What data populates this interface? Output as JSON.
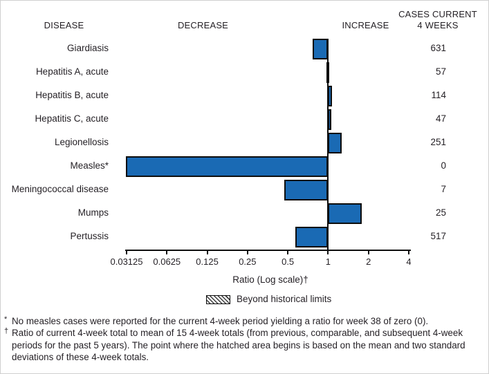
{
  "header": {
    "disease": "DISEASE",
    "decrease": "DECREASE",
    "increase": "INCREASE",
    "cases_line1": "CASES CURRENT",
    "cases_line2": "4 WEEKS"
  },
  "chart_data": {
    "type": "bar",
    "orientation": "horizontal",
    "scale": "log2",
    "title": "",
    "xlabel": "Ratio (Log scale)†",
    "axis_range": [
      0.03125,
      4
    ],
    "axis_ticks": [
      0.03125,
      0.0625,
      0.125,
      0.25,
      0.5,
      1,
      2,
      4
    ],
    "baseline": 1,
    "grid": false,
    "rows": [
      {
        "disease": "Giardiasis",
        "ratio": 0.77,
        "cases": 631
      },
      {
        "disease": "Hepatitis A, acute",
        "ratio": 0.97,
        "cases": 57
      },
      {
        "disease": "Hepatitis B, acute",
        "ratio": 1.07,
        "cases": 114
      },
      {
        "disease": "Hepatitis C, acute",
        "ratio": 1.03,
        "cases": 47
      },
      {
        "disease": "Legionellosis",
        "ratio": 1.26,
        "cases": 251
      },
      {
        "disease": "Measles*",
        "ratio": 0,
        "cases": 0
      },
      {
        "disease": "Meningococcal disease",
        "ratio": 0.47,
        "cases": 7
      },
      {
        "disease": "Mumps",
        "ratio": 1.78,
        "cases": 25
      },
      {
        "disease": "Pertussis",
        "ratio": 0.57,
        "cases": 517
      }
    ],
    "legend": {
      "label": "Beyond historical limits",
      "swatch": "diagonal-hatch"
    },
    "colors": {
      "bar_fill": "#1a6ab4",
      "bar_border": "#0d0d0d",
      "axis": "#0d0d0d",
      "text": "#231f24"
    }
  },
  "footnotes": [
    {
      "marker": "*",
      "text": "No measles cases were reported for the current 4-week period yielding a ratio for week 38 of zero (0)."
    },
    {
      "marker": "†",
      "text": "Ratio of current 4-week total to mean of 15 4-week totals (from previous, comparable, and subsequent 4-week periods for the past 5 years). The point where the hatched area begins is based on the mean and two standard deviations of these 4-week totals."
    }
  ]
}
